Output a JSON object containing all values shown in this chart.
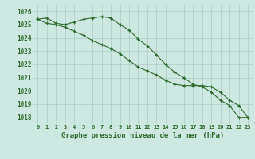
{
  "x": [
    0,
    1,
    2,
    3,
    4,
    5,
    6,
    7,
    8,
    9,
    10,
    11,
    12,
    13,
    14,
    15,
    16,
    17,
    18,
    19,
    20,
    21,
    22,
    23
  ],
  "line1": [
    1025.4,
    1025.5,
    1025.1,
    1025.0,
    1025.2,
    1025.4,
    1025.5,
    1025.6,
    1025.5,
    1025.0,
    1024.6,
    1023.9,
    1023.4,
    1022.7,
    1022.0,
    1021.4,
    1021.0,
    1020.5,
    1020.3,
    1019.9,
    1019.3,
    1018.9,
    1018.0,
    1018.0
  ],
  "line2": [
    1025.4,
    1025.1,
    1025.0,
    1024.8,
    1024.5,
    1024.2,
    1023.8,
    1023.5,
    1023.2,
    1022.8,
    1022.3,
    1021.8,
    1021.5,
    1021.2,
    1020.8,
    1020.5,
    1020.4,
    1020.4,
    1020.4,
    1020.3,
    1019.9,
    1019.3,
    1018.9,
    1018.0
  ],
  "line_color": "#2d6a2d",
  "bg_color": "#cce8e0",
  "grid_color": "#aaccc4",
  "text_color": "#2d6a2d",
  "xlabel": "Graphe pression niveau de la mer (hPa)",
  "ylim_min": 1017.5,
  "ylim_max": 1026.5,
  "yticks": [
    1018,
    1019,
    1020,
    1021,
    1022,
    1023,
    1024,
    1025,
    1026
  ]
}
